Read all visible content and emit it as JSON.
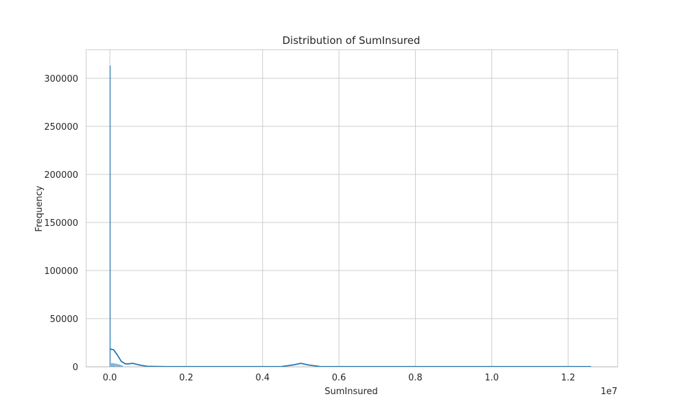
{
  "chart_data": {
    "type": "histogram",
    "title": "Distribution of SumInsured",
    "xlabel": "SumInsured",
    "ylabel": "Frequency",
    "x_offset_text": "1e7",
    "xlim": [
      -0.063,
      1.329
    ],
    "ylim": [
      0,
      330000
    ],
    "x_ticks": [
      0.0,
      0.2,
      0.4,
      0.6,
      0.8,
      1.0,
      1.2
    ],
    "x_tick_labels": [
      "0.0",
      "0.2",
      "0.4",
      "0.6",
      "0.8",
      "1.0",
      "1.2"
    ],
    "y_ticks": [
      0,
      50000,
      100000,
      150000,
      200000,
      250000,
      300000
    ],
    "y_tick_labels": [
      "0",
      "50000",
      "100000",
      "150000",
      "200000",
      "250000",
      "300000"
    ],
    "grid": true,
    "bar_color": "#1f77b4",
    "kde_color": "#1f77b4",
    "bins": [
      {
        "x0": 0.0,
        "x1": 0.0004,
        "count": 313000
      },
      {
        "x0": 0.004,
        "x1": 0.0044,
        "count": 3500
      },
      {
        "x0": 0.008,
        "x1": 0.0084,
        "count": 3500
      },
      {
        "x0": 0.012,
        "x1": 0.0124,
        "count": 3000
      },
      {
        "x0": 0.016,
        "x1": 0.0164,
        "count": 3000
      },
      {
        "x0": 0.02,
        "x1": 0.0204,
        "count": 2500
      },
      {
        "x0": 0.024,
        "x1": 0.0244,
        "count": 2000
      },
      {
        "x0": 0.028,
        "x1": 0.0284,
        "count": 1500
      },
      {
        "x0": 0.032,
        "x1": 0.0324,
        "count": 1000
      }
    ],
    "kde": {
      "x": [
        0.0,
        0.01,
        0.02,
        0.03,
        0.04,
        0.05,
        0.06,
        0.08,
        0.1,
        0.15,
        0.2,
        0.3,
        0.4,
        0.45,
        0.48,
        0.5,
        0.52,
        0.55,
        0.6,
        0.8,
        1.0,
        1.2,
        1.26
      ],
      "y": [
        18500,
        17500,
        12000,
        5500,
        3000,
        3000,
        3500,
        1500,
        300,
        100,
        50,
        50,
        50,
        200,
        1800,
        3500,
        1800,
        200,
        50,
        30,
        30,
        30,
        30
      ]
    }
  }
}
